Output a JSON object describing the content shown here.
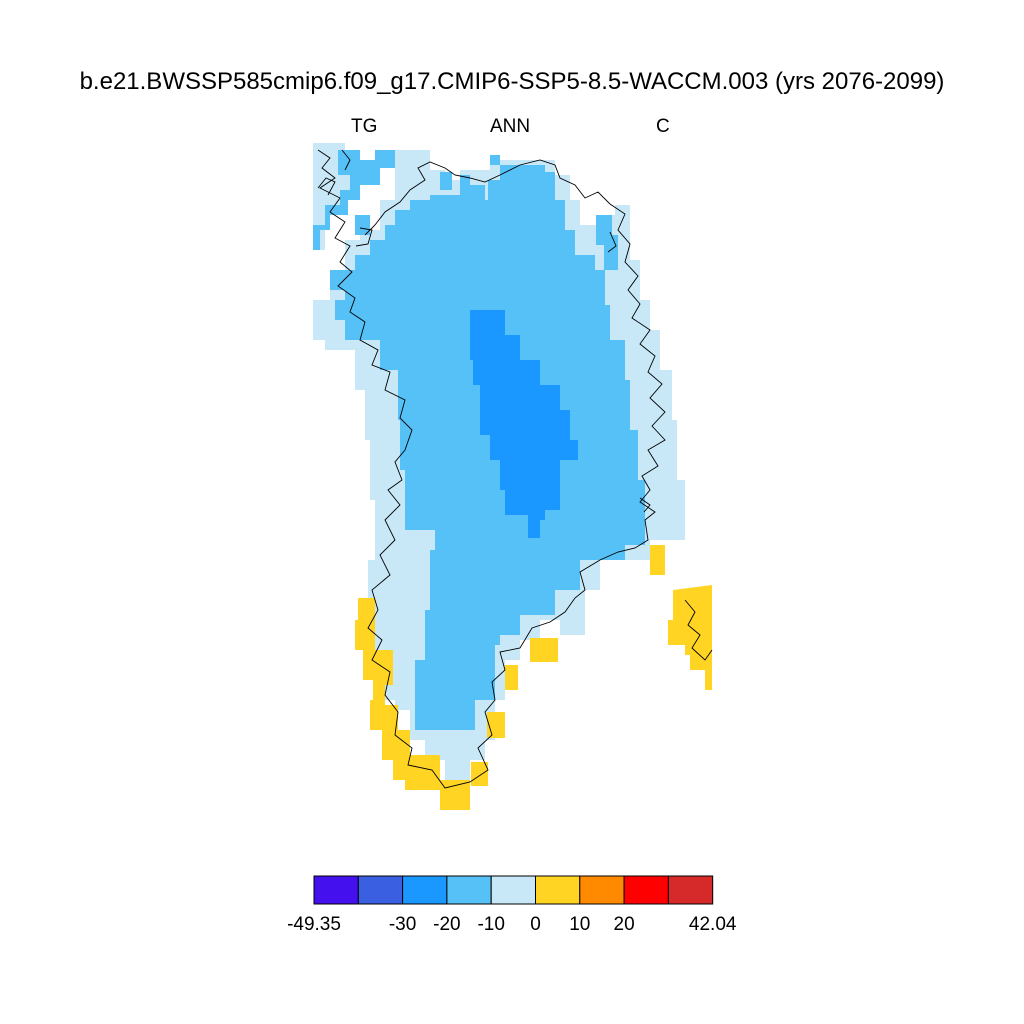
{
  "title": "b.e21.BWSSP585cmip6.f09_g17.CMIP6-SSP5-8.5-WACCM.003 (yrs 2076-2099)",
  "left_string": "TG",
  "center_string": "ANN",
  "right_string": "C",
  "colorbar": {
    "colors": [
      "#4411ee",
      "#3a5fe0",
      "#1a98ff",
      "#56c1f6",
      "#c8e8f8",
      "#ffd423",
      "#ff8a00",
      "#ff0000",
      "#d62a2a"
    ],
    "labels": [
      "-49.35",
      "",
      "-30",
      "-20",
      "-10",
      "0",
      "10",
      "20",
      "",
      "42.04"
    ]
  },
  "colors": {
    "bin_neg20_neg10": "#56c1f6",
    "bin_neg30_neg20": "#1a98ff",
    "bin_neg10_0": "#c8e8f8",
    "bin_0_10": "#ffd423",
    "coastline": "#000000"
  }
}
